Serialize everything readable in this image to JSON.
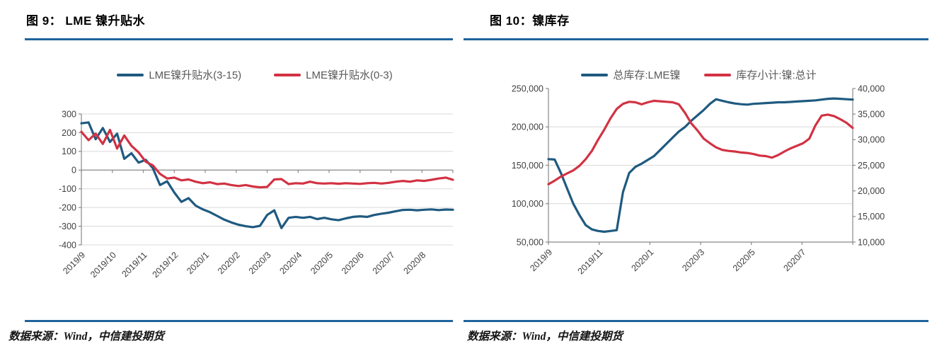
{
  "colors": {
    "line_blue": "#1F5A80",
    "line_red": "#D23243",
    "rule_blue": "#1F649B",
    "grid": "#D9D9D9",
    "axis": "#898989",
    "tick_text": "#404040",
    "legend_text": "#595959"
  },
  "figures": [
    {
      "title": "图 9：  LME 镍升贴水",
      "source_note": "数据来源：Wind，中信建投期货",
      "chart_data": {
        "type": "line",
        "title": "LME 镍升贴水",
        "months_span": 12,
        "x_labels": [
          "2019/9",
          "2019/10",
          "2019/11",
          "2019/12",
          "2020/1",
          "2020/2",
          "2020/3",
          "2020/4",
          "2020/5",
          "2020/6",
          "2020/7",
          "2020/8"
        ],
        "x_label_months": [
          0,
          1,
          2,
          3,
          4,
          5,
          6,
          7,
          8,
          9,
          10,
          11
        ],
        "x_tick_months": [
          0,
          1,
          2,
          3,
          4,
          5,
          6,
          7,
          8,
          9,
          10,
          11,
          12
        ],
        "x_axis_at": 0,
        "grid": true,
        "legend_position": "top",
        "left_axis": {
          "range": [
            -400,
            300
          ],
          "ticks": [
            300,
            200,
            100,
            0,
            -100,
            -200,
            -300,
            -400
          ],
          "format": "plain"
        },
        "grid_ticks": [
          300,
          200,
          100,
          -100,
          -200,
          -300,
          -400
        ],
        "series": [
          {
            "name": "LME镍升贴水(3-15)",
            "color": "#1F5A80",
            "axis": "left",
            "values": [
              250,
              255,
              165,
              225,
              150,
              195,
              60,
              90,
              40,
              55,
              10,
              -80,
              -60,
              -120,
              -170,
              -150,
              -190,
              -210,
              -225,
              -245,
              -265,
              -280,
              -292,
              -300,
              -305,
              -298,
              -240,
              -215,
              -310,
              -255,
              -250,
              -255,
              -250,
              -262,
              -255,
              -263,
              -268,
              -258,
              -250,
              -247,
              -250,
              -240,
              -233,
              -228,
              -220,
              -213,
              -212,
              -215,
              -212,
              -210,
              -214,
              -211,
              -212
            ]
          },
          {
            "name": "LME镍升贴水(0-3)",
            "color": "#D23243",
            "axis": "left",
            "values": [
              205,
              160,
              195,
              140,
              215,
              115,
              185,
              130,
              95,
              45,
              25,
              -20,
              -45,
              -40,
              -55,
              -50,
              -62,
              -70,
              -65,
              -75,
              -72,
              -80,
              -85,
              -80,
              -88,
              -92,
              -90,
              -50,
              -48,
              -75,
              -70,
              -72,
              -62,
              -70,
              -72,
              -70,
              -73,
              -70,
              -72,
              -74,
              -70,
              -68,
              -72,
              -68,
              -62,
              -58,
              -62,
              -55,
              -58,
              -52,
              -45,
              -40,
              -52
            ]
          }
        ]
      }
    },
    {
      "title": "图 10：镍库存",
      "source_note": "数据来源：Wind，中信建投期货",
      "chart_data": {
        "type": "line",
        "title": "镍库存",
        "months_span": 12,
        "x_labels": [
          "2019/9",
          "2019/11",
          "2020/1",
          "2020/3",
          "2020/5",
          "2020/7"
        ],
        "x_label_months": [
          0,
          2,
          4,
          6,
          8,
          10
        ],
        "x_tick_months": [
          0,
          2,
          4,
          6,
          8,
          10,
          12
        ],
        "x_axis_at": "bottom",
        "grid": true,
        "legend_position": "top",
        "left_axis": {
          "range": [
            50000,
            250000
          ],
          "ticks": [
            250000,
            200000,
            150000,
            100000,
            50000
          ],
          "format": "comma"
        },
        "right_axis": {
          "range": [
            10000,
            40000
          ],
          "ticks": [
            40000,
            35000,
            30000,
            25000,
            20000,
            15000,
            10000
          ],
          "format": "comma"
        },
        "grid_ticks": [
          200000,
          150000,
          100000
        ],
        "series": [
          {
            "name": "总库存:LME镍",
            "color": "#1F5A80",
            "axis": "left",
            "values": [
              158000,
              157500,
              140000,
              120000,
              100000,
              85000,
              72000,
              66500,
              64500,
              63500,
              64500,
              65500,
              115000,
              140000,
              148000,
              152000,
              157000,
              162000,
              170000,
              178000,
              186000,
              194000,
              200000,
              208000,
              215000,
              222000,
              230000,
              236000,
              234000,
              232000,
              230500,
              229500,
              229000,
              230000,
              230500,
              231000,
              231500,
              232000,
              232000,
              232500,
              233000,
              233500,
              234000,
              234500,
              235500,
              236500,
              237000,
              236500,
              236000,
              235500
            ]
          },
          {
            "name": "库存小计:镍:总计",
            "color": "#D23243",
            "axis": "right",
            "values": [
              21300,
              22000,
              22800,
              23400,
              24000,
              24900,
              26200,
              27800,
              30000,
              32000,
              34200,
              36000,
              37000,
              37400,
              37300,
              36900,
              37300,
              37600,
              37500,
              37400,
              37300,
              36900,
              35200,
              33200,
              31800,
              30200,
              29300,
              28500,
              28000,
              27800,
              27700,
              27500,
              27400,
              27200,
              26900,
              26800,
              26500,
              27000,
              27700,
              28300,
              28800,
              29300,
              30200,
              32800,
              34700,
              34900,
              34600,
              34000,
              33300,
              32300
            ]
          }
        ]
      }
    }
  ]
}
